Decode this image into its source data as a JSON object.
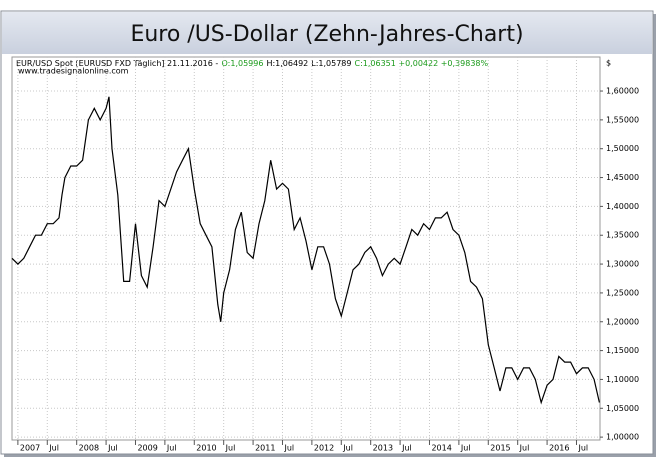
{
  "chart_data": {
    "type": "line",
    "title": "Euro /US-Dollar (Zehn-Jahres-Chart)",
    "annotations": [
      {
        "text": "EUR/USD Spot [EURUSD FXD  Täglich] 21.11.2016 -",
        "color": "#000000"
      },
      {
        "text": "O:1,05996",
        "color": "#1a9a1a"
      },
      {
        "text": "H:1,06492",
        "color": "#000000"
      },
      {
        "text": "L:1,05789",
        "color": "#000000"
      },
      {
        "text": "C:1,06351 +0,00422 +0,39838%",
        "color": "#1a9a1a"
      }
    ],
    "source": "www.tradesignalonline.com",
    "y_axis_label": "$",
    "color": "#000000",
    "grid": true,
    "x": [
      2006.9,
      2007.0,
      2007.1,
      2007.2,
      2007.3,
      2007.4,
      2007.5,
      2007.6,
      2007.7,
      2007.75,
      2007.8,
      2007.9,
      2008.0,
      2008.1,
      2008.2,
      2008.3,
      2008.4,
      2008.5,
      2008.55,
      2008.6,
      2008.7,
      2008.8,
      2008.9,
      2009.0,
      2009.1,
      2009.2,
      2009.3,
      2009.4,
      2009.5,
      2009.6,
      2009.7,
      2009.8,
      2009.9,
      2010.0,
      2010.1,
      2010.2,
      2010.3,
      2010.4,
      2010.45,
      2010.5,
      2010.6,
      2010.7,
      2010.8,
      2010.9,
      2011.0,
      2011.1,
      2011.2,
      2011.3,
      2011.4,
      2011.5,
      2011.6,
      2011.7,
      2011.8,
      2011.9,
      2012.0,
      2012.1,
      2012.2,
      2012.3,
      2012.4,
      2012.5,
      2012.6,
      2012.7,
      2012.8,
      2012.9,
      2013.0,
      2013.1,
      2013.2,
      2013.3,
      2013.4,
      2013.5,
      2013.6,
      2013.7,
      2013.8,
      2013.9,
      2014.0,
      2014.1,
      2014.2,
      2014.3,
      2014.4,
      2014.5,
      2014.6,
      2014.7,
      2014.8,
      2014.9,
      2015.0,
      2015.1,
      2015.2,
      2015.3,
      2015.4,
      2015.5,
      2015.6,
      2015.7,
      2015.8,
      2015.9,
      2016.0,
      2016.1,
      2016.2,
      2016.3,
      2016.4,
      2016.5,
      2016.6,
      2016.7,
      2016.8,
      2016.89
    ],
    "values": [
      1.31,
      1.3,
      1.31,
      1.33,
      1.35,
      1.35,
      1.37,
      1.37,
      1.38,
      1.42,
      1.45,
      1.47,
      1.47,
      1.48,
      1.55,
      1.57,
      1.55,
      1.57,
      1.59,
      1.5,
      1.42,
      1.27,
      1.27,
      1.37,
      1.28,
      1.26,
      1.33,
      1.41,
      1.4,
      1.43,
      1.46,
      1.48,
      1.5,
      1.43,
      1.37,
      1.35,
      1.33,
      1.23,
      1.2,
      1.25,
      1.29,
      1.36,
      1.39,
      1.32,
      1.31,
      1.37,
      1.41,
      1.48,
      1.43,
      1.44,
      1.43,
      1.36,
      1.38,
      1.34,
      1.29,
      1.33,
      1.33,
      1.3,
      1.24,
      1.21,
      1.25,
      1.29,
      1.3,
      1.32,
      1.33,
      1.31,
      1.28,
      1.3,
      1.31,
      1.3,
      1.33,
      1.36,
      1.35,
      1.37,
      1.36,
      1.38,
      1.38,
      1.39,
      1.36,
      1.35,
      1.32,
      1.27,
      1.26,
      1.24,
      1.16,
      1.12,
      1.08,
      1.12,
      1.12,
      1.1,
      1.12,
      1.12,
      1.1,
      1.06,
      1.09,
      1.1,
      1.14,
      1.13,
      1.13,
      1.11,
      1.12,
      1.12,
      1.1,
      1.06
    ],
    "xlim": [
      2006.9,
      2016.9
    ],
    "xticks": [
      {
        "value": 2007,
        "label": "2007"
      },
      {
        "value": 2007.5,
        "label": "Jul"
      },
      {
        "value": 2008,
        "label": "2008"
      },
      {
        "value": 2008.5,
        "label": "Jul"
      },
      {
        "value": 2009,
        "label": "2009"
      },
      {
        "value": 2009.5,
        "label": "Jul"
      },
      {
        "value": 2010,
        "label": "2010"
      },
      {
        "value": 2010.5,
        "label": "Jul"
      },
      {
        "value": 2011,
        "label": "2011"
      },
      {
        "value": 2011.5,
        "label": "Jul"
      },
      {
        "value": 2012,
        "label": "2012"
      },
      {
        "value": 2012.5,
        "label": "Jul"
      },
      {
        "value": 2013,
        "label": "2013"
      },
      {
        "value": 2013.5,
        "label": "Jul"
      },
      {
        "value": 2014,
        "label": "2014"
      },
      {
        "value": 2014.5,
        "label": "Jul"
      },
      {
        "value": 2015,
        "label": "2015"
      },
      {
        "value": 2015.5,
        "label": "Jul"
      },
      {
        "value": 2016,
        "label": "2016"
      },
      {
        "value": 2016.5,
        "label": "Jul"
      }
    ],
    "ylim": [
      0.995,
      1.659
    ],
    "yticks": [
      {
        "value": 1.0,
        "label": "1,00000"
      },
      {
        "value": 1.05,
        "label": "1,05000"
      },
      {
        "value": 1.1,
        "label": "1,10000"
      },
      {
        "value": 1.15,
        "label": "1,15000"
      },
      {
        "value": 1.2,
        "label": "1,20000"
      },
      {
        "value": 1.25,
        "label": "1,25000"
      },
      {
        "value": 1.3,
        "label": "1,30000"
      },
      {
        "value": 1.35,
        "label": "1,35000"
      },
      {
        "value": 1.4,
        "label": "1,40000"
      },
      {
        "value": 1.45,
        "label": "1,45000"
      },
      {
        "value": 1.5,
        "label": "1,50000"
      },
      {
        "value": 1.55,
        "label": "1,55000"
      },
      {
        "value": 1.6,
        "label": "1,60000"
      }
    ]
  }
}
